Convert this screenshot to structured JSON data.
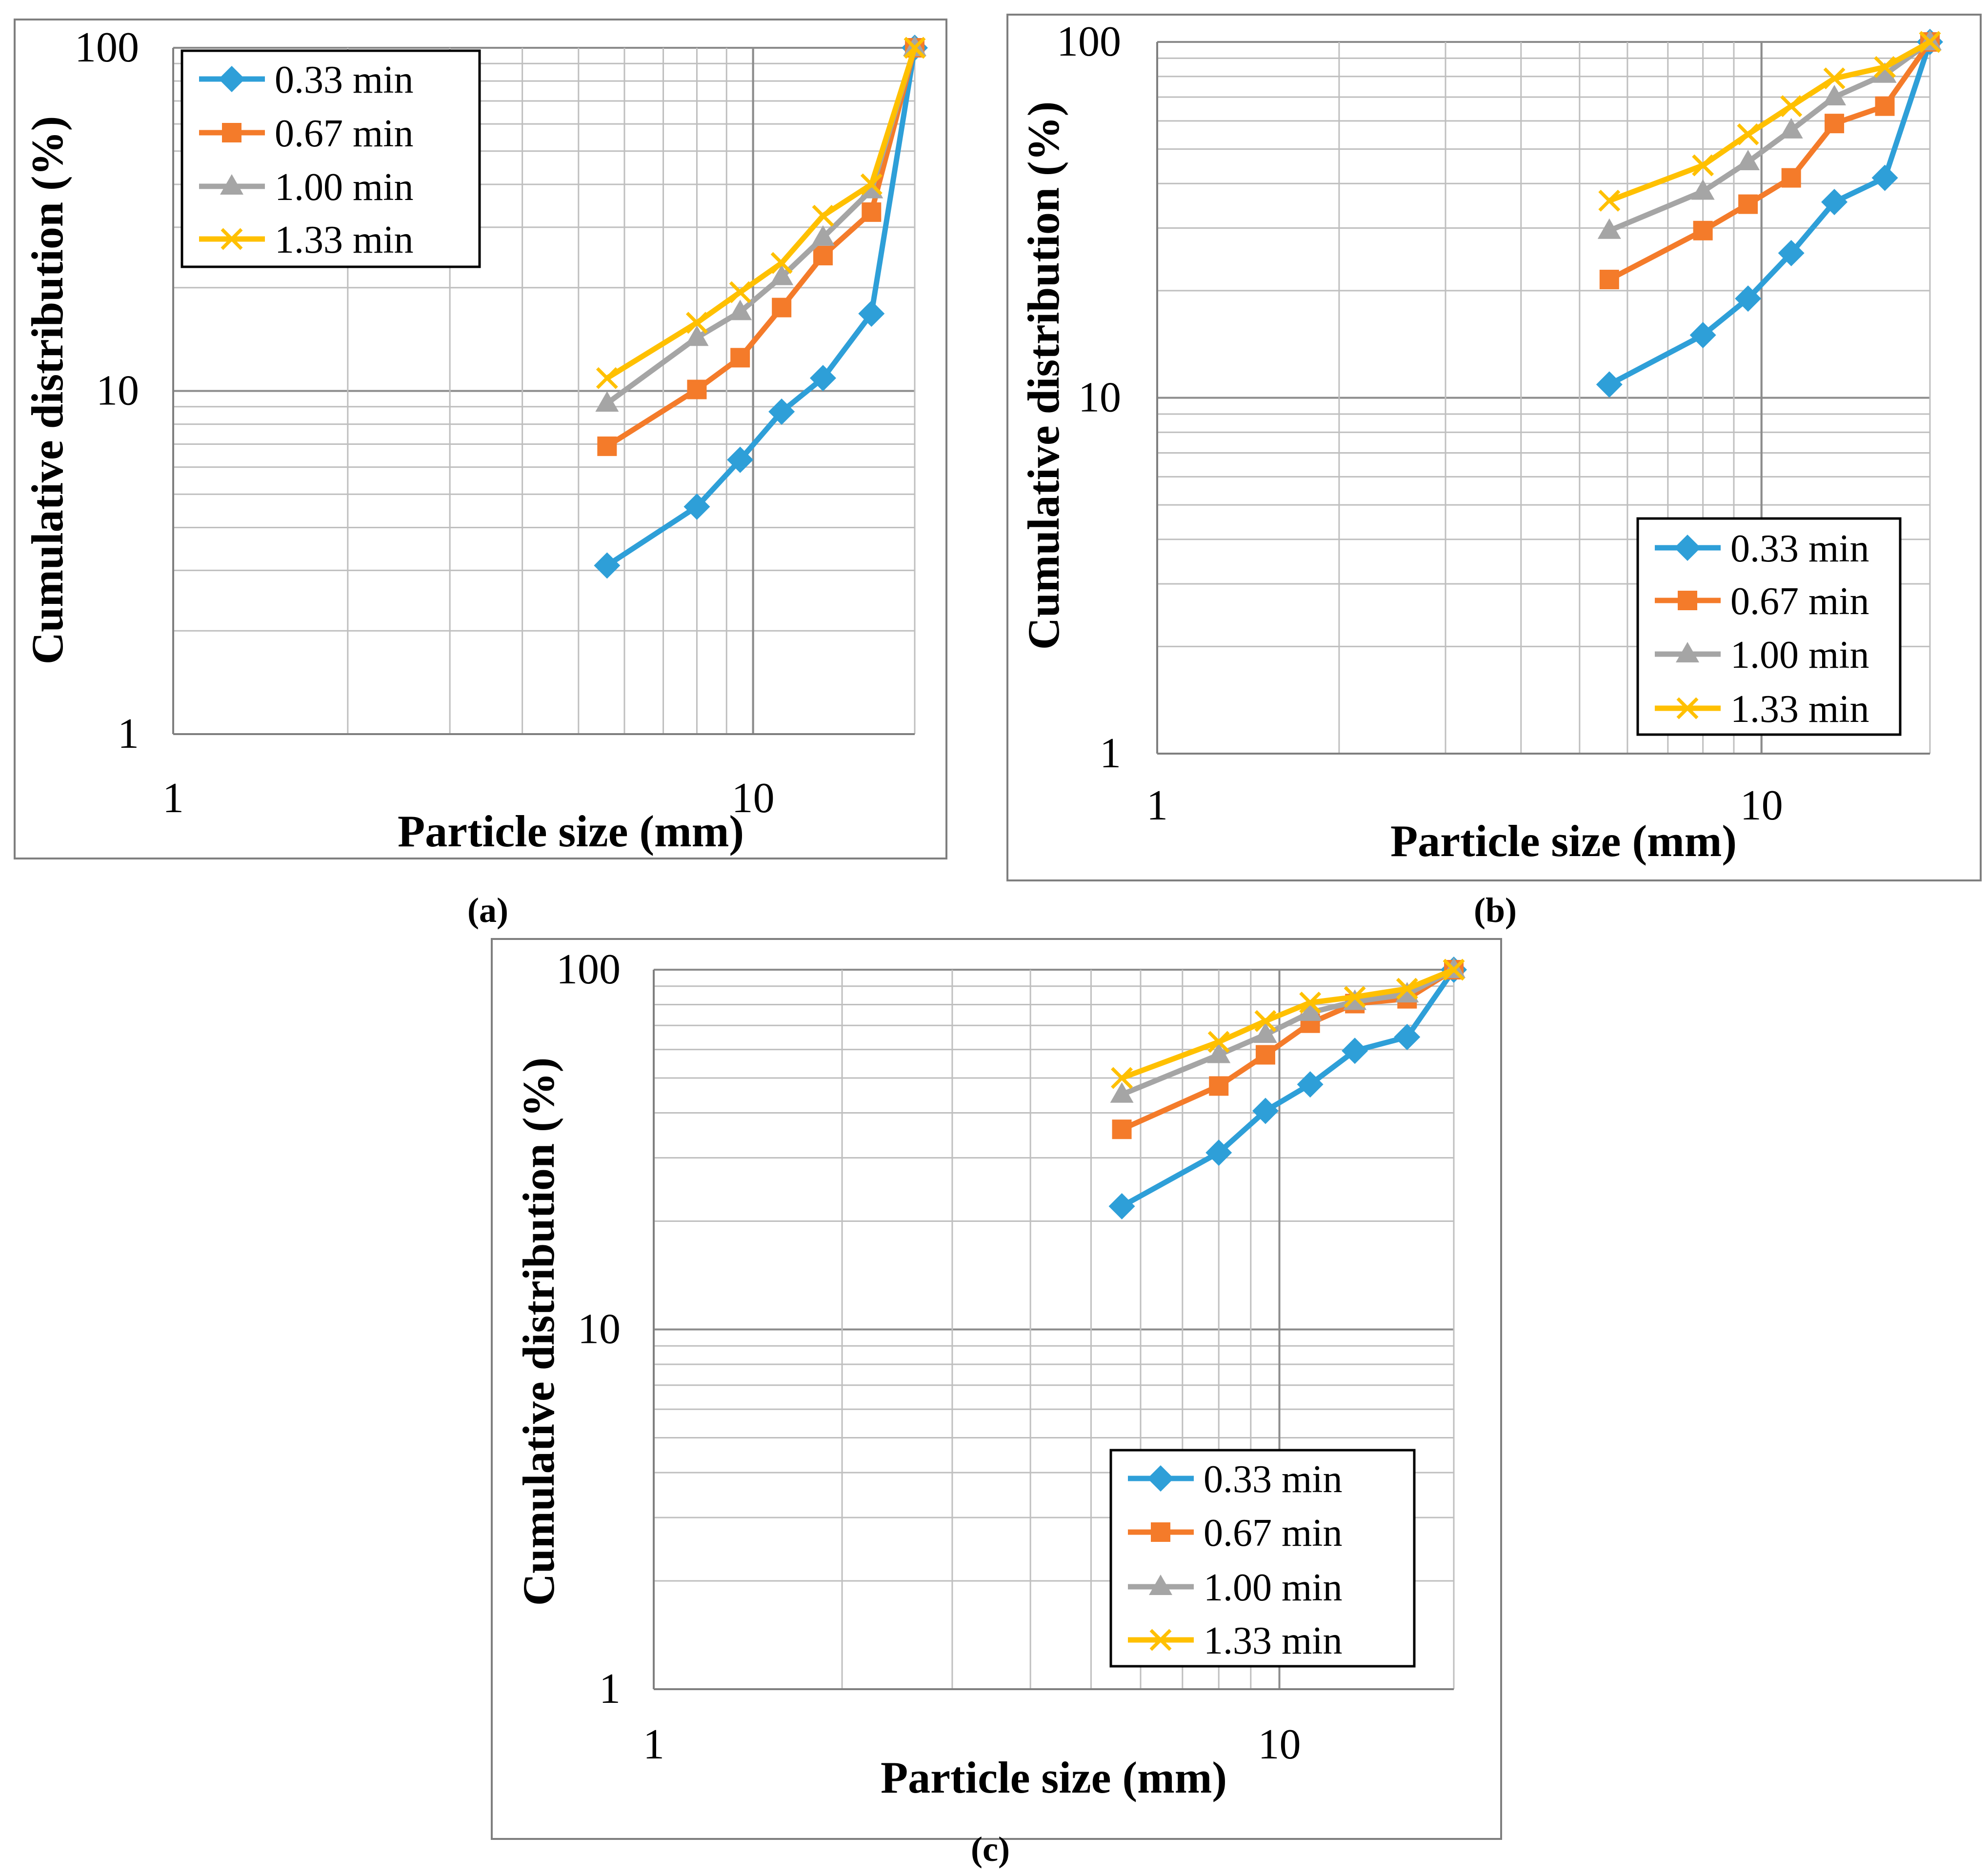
{
  "chart_data": [
    {
      "type": "line",
      "panel_label": "(a)",
      "xscale": "log",
      "yscale": "log",
      "xlabel": "Particle size (mm)",
      "ylabel": "Cumulative distribution (%)",
      "xlim": [
        1,
        19
      ],
      "ylim": [
        1,
        100
      ],
      "xticks": [
        1,
        10
      ],
      "xtick_labels": [
        "1",
        "10"
      ],
      "yticks": [
        1,
        10,
        100
      ],
      "ytick_labels": [
        "1",
        "10",
        "100"
      ],
      "grid": true,
      "legend_position": "top-left",
      "x": [
        5.6,
        8,
        9.5,
        11.2,
        13.2,
        16,
        19
      ],
      "series": [
        {
          "name": "0.33 min",
          "color": "#2E9FD8",
          "marker": "diamond",
          "values": [
            3.1,
            4.6,
            6.3,
            8.7,
            10.9,
            16.8,
            100
          ]
        },
        {
          "name": "0.67 min",
          "color": "#F47B2A",
          "marker": "square",
          "values": [
            6.9,
            10.1,
            12.5,
            17.5,
            24.8,
            33.2,
            100
          ]
        },
        {
          "name": "1.00 min",
          "color": "#A5A5A5",
          "marker": "triangle",
          "values": [
            9.2,
            14.3,
            17.0,
            21.5,
            28.0,
            38.5,
            100
          ]
        },
        {
          "name": "1.33 min",
          "color": "#FFC000",
          "marker": "x",
          "values": [
            10.9,
            15.8,
            19.4,
            23.6,
            32.4,
            40.0,
            100
          ]
        }
      ]
    },
    {
      "type": "line",
      "panel_label": "(b)",
      "xscale": "log",
      "yscale": "log",
      "xlabel": "Particle size (mm)",
      "ylabel": "Cumulative distribution (%)",
      "xlim": [
        1,
        19
      ],
      "ylim": [
        1,
        100
      ],
      "xticks": [
        1,
        10
      ],
      "xtick_labels": [
        "1",
        "10"
      ],
      "yticks": [
        1,
        10,
        100
      ],
      "ytick_labels": [
        "1",
        "10",
        "100"
      ],
      "grid": true,
      "legend_position": "bottom-right",
      "x": [
        5.6,
        8,
        9.5,
        11.2,
        13.2,
        16,
        19
      ],
      "series": [
        {
          "name": "0.33 min",
          "color": "#2E9FD8",
          "marker": "diamond",
          "values": [
            10.9,
            15.0,
            19.0,
            25.5,
            35.5,
            41.5,
            100
          ]
        },
        {
          "name": "0.67 min",
          "color": "#F47B2A",
          "marker": "square",
          "values": [
            21.5,
            29.5,
            35.0,
            41.5,
            59.0,
            66.0,
            100
          ]
        },
        {
          "name": "1.00 min",
          "color": "#A5A5A5",
          "marker": "triangle",
          "values": [
            29.5,
            38.0,
            46.0,
            56.5,
            70.0,
            81.0,
            100
          ]
        },
        {
          "name": "1.33 min",
          "color": "#FFC000",
          "marker": "x",
          "values": [
            35.8,
            45.0,
            55.0,
            66.0,
            79.0,
            85.0,
            100
          ]
        }
      ]
    },
    {
      "type": "line",
      "panel_label": "(c)",
      "xscale": "log",
      "yscale": "log",
      "xlabel": "Particle size (mm)",
      "ylabel": "Cumulative distribution (%)",
      "xlim": [
        1,
        19
      ],
      "ylim": [
        1,
        100
      ],
      "xticks": [
        1,
        10
      ],
      "xtick_labels": [
        "1",
        "10"
      ],
      "yticks": [
        1,
        10,
        100
      ],
      "ytick_labels": [
        "1",
        "10",
        "100"
      ],
      "grid": true,
      "legend_position": "bottom-right",
      "x": [
        5.6,
        8,
        9.5,
        11.2,
        13.2,
        16,
        19
      ],
      "series": [
        {
          "name": "0.33 min",
          "color": "#2E9FD8",
          "marker": "diamond",
          "values": [
            22.0,
            31.0,
            40.5,
            48.0,
            59.5,
            65.0,
            100
          ]
        },
        {
          "name": "0.67 min",
          "color": "#F47B2A",
          "marker": "square",
          "values": [
            36.0,
            47.5,
            58.0,
            71.0,
            80.5,
            83.0,
            100
          ]
        },
        {
          "name": "1.00 min",
          "color": "#A5A5A5",
          "marker": "triangle",
          "values": [
            45.0,
            58.0,
            66.0,
            76.0,
            81.5,
            85.5,
            100
          ]
        },
        {
          "name": "1.33 min",
          "color": "#FFC000",
          "marker": "x",
          "values": [
            50.0,
            63.0,
            72.0,
            81.0,
            84.0,
            88.5,
            100
          ]
        }
      ]
    }
  ]
}
